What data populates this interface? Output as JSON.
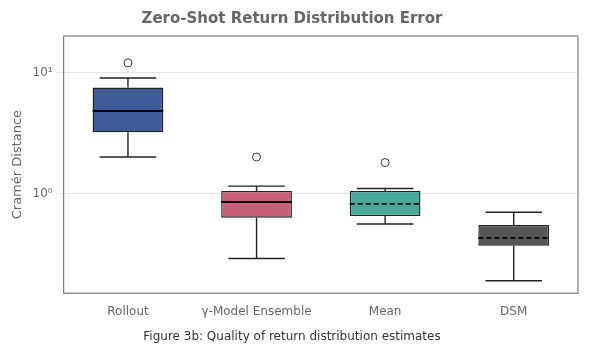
{
  "chart_data": {
    "type": "box",
    "title": "Zero-Shot Return Distribution Error",
    "y_label": "Cramér Distance",
    "caption": "Figure 3b: Quality of return distribution estimates",
    "categories": [
      "Rollout",
      "γ-Model Ensemble",
      "Mean",
      "DSM"
    ],
    "values": [
      {
        "whislo": 2.0,
        "q1": 3.2,
        "med": 4.8,
        "q3": 7.5,
        "whishi": 9.0,
        "fliers": [
          12.0
        ],
        "line_style": "solid"
      },
      {
        "whislo": 0.29,
        "q1": 0.63,
        "med": 0.85,
        "q3": 1.05,
        "whishi": 1.15,
        "fliers": [
          2.0
        ],
        "line_style": "solid"
      },
      {
        "whislo": 0.56,
        "q1": 0.65,
        "med": 0.82,
        "q3": 1.05,
        "whishi": 1.1,
        "fliers": [
          1.8
        ],
        "line_style": "dashed"
      },
      {
        "whislo": 0.19,
        "q1": 0.37,
        "med": 0.43,
        "q3": 0.55,
        "whishi": 0.7,
        "fliers": [],
        "line_style": "dashed"
      }
    ],
    "colors": [
      "#3d5a99",
      "#c9607a",
      "#4aa89a",
      "#555555"
    ],
    "log": "y",
    "ylim": [
      0.15,
      20.0
    ],
    "yticks": [
      {
        "value": 1,
        "label": "10⁰"
      },
      {
        "value": 10,
        "label": "10¹"
      }
    ],
    "grid": true
  }
}
